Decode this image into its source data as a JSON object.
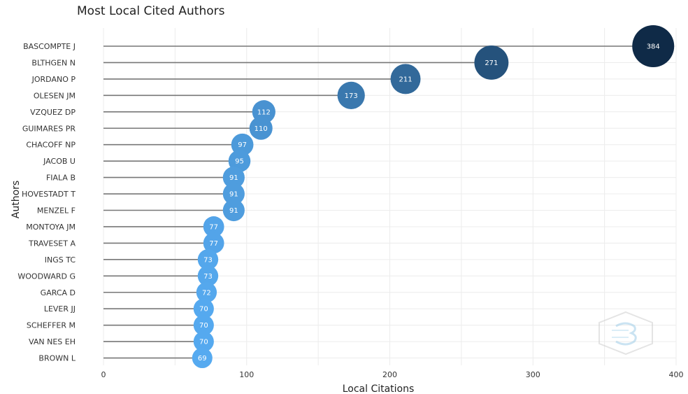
{
  "chart_data": {
    "type": "lollipop",
    "title": "Most Local Cited Authors",
    "xlabel": "Local Citations",
    "ylabel": "Authors",
    "xlim": [
      0,
      400
    ],
    "xticks": [
      0,
      100,
      200,
      300,
      400
    ],
    "grid": true,
    "categories": [
      "BASCOMPTE J",
      "BLTHGEN N",
      "JORDANO P",
      "OLESEN JM",
      "VZQUEZ DP",
      "GUIMARES PR",
      "CHACOFF NP",
      "JACOB U",
      "FIALA B",
      "HOVESTADT T",
      "MENZEL F",
      "MONTOYA JM",
      "TRAVESET A",
      "INGS TC",
      "WOODWARD G",
      "GARCA D",
      "LEVER JJ",
      "SCHEFFER M",
      "VAN NES EH",
      "BROWN L"
    ],
    "values": [
      384,
      271,
      211,
      173,
      112,
      110,
      97,
      95,
      91,
      91,
      91,
      77,
      77,
      73,
      73,
      72,
      70,
      70,
      70,
      69
    ],
    "color_scale": {
      "low": "#56aaf0",
      "high": "#0f2a47"
    }
  }
}
